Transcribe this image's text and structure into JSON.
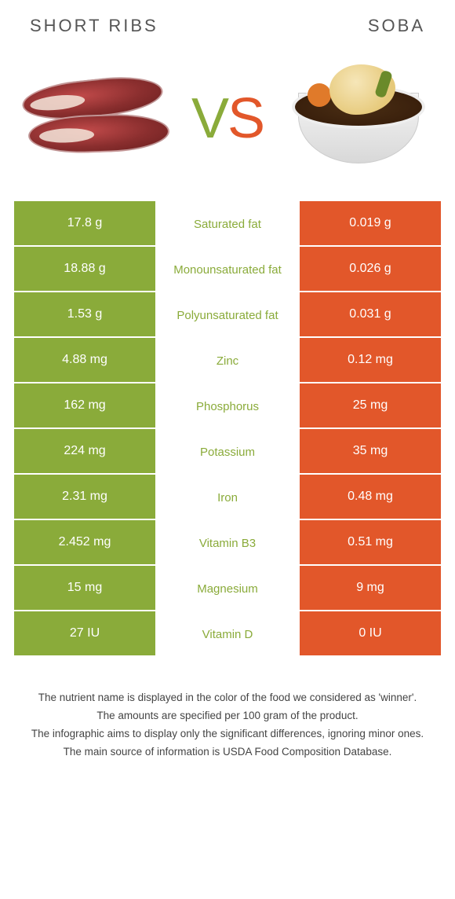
{
  "left_title": "SHORT RIBS",
  "right_title": "SOBA",
  "vs_v": "V",
  "vs_s": "S",
  "colors": {
    "left": "#8aab3a",
    "right": "#e2572a",
    "background": "#ffffff",
    "text": "#333333"
  },
  "rows": [
    {
      "left": "17.8 g",
      "label": "Saturated fat",
      "right": "0.019 g",
      "winner": "left"
    },
    {
      "left": "18.88 g",
      "label": "Monounsaturated fat",
      "right": "0.026 g",
      "winner": "left"
    },
    {
      "left": "1.53 g",
      "label": "Polyunsaturated fat",
      "right": "0.031 g",
      "winner": "left"
    },
    {
      "left": "4.88 mg",
      "label": "Zinc",
      "right": "0.12 mg",
      "winner": "left"
    },
    {
      "left": "162 mg",
      "label": "Phosphorus",
      "right": "25 mg",
      "winner": "left"
    },
    {
      "left": "224 mg",
      "label": "Potassium",
      "right": "35 mg",
      "winner": "left"
    },
    {
      "left": "2.31 mg",
      "label": "Iron",
      "right": "0.48 mg",
      "winner": "left"
    },
    {
      "left": "2.452 mg",
      "label": "Vitamin B3",
      "right": "0.51 mg",
      "winner": "left"
    },
    {
      "left": "15 mg",
      "label": "Magnesium",
      "right": "9 mg",
      "winner": "left"
    },
    {
      "left": "27 IU",
      "label": "Vitamin D",
      "right": "0 IU",
      "winner": "left"
    }
  ],
  "footer": {
    "line1": "The nutrient name is displayed in the color of the food we considered as 'winner'.",
    "line2": "The amounts are specified per 100 gram of the product.",
    "line3": "The infographic aims to display only the significant differences, ignoring minor ones.",
    "line4": "The main source of information is USDA Food Composition Database."
  }
}
